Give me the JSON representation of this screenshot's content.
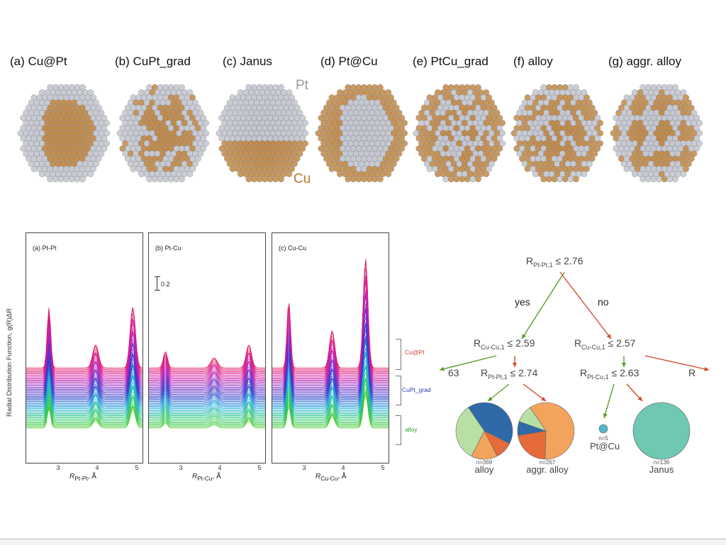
{
  "structures": [
    {
      "label": "(a) Cu@Pt",
      "kind": "core-shell-cu"
    },
    {
      "label": "(b) CuPt_grad",
      "kind": "grad-cu"
    },
    {
      "label": "(c) Janus",
      "kind": "janus"
    },
    {
      "label": "(d) Pt@Cu",
      "kind": "core-shell-pt"
    },
    {
      "label": "(e) PtCu_grad",
      "kind": "grad-pt"
    },
    {
      "label": "(f) alloy",
      "kind": "alloy"
    },
    {
      "label": "(g) aggr. alloy",
      "kind": "aggr"
    }
  ],
  "element_labels": {
    "pt": "Pt",
    "cu": "Cu"
  },
  "colors": {
    "pt": "#c4c6d0",
    "cu": "#c08a4a",
    "pt_label": "#9a9aa3",
    "cu_label": "#c0762e"
  },
  "rdf": {
    "y_axis_label": "Radial Distribution Function, g(R)ΔR",
    "scale_bar_label": "0.2",
    "x_ticks": [
      "3",
      "4",
      "5"
    ],
    "panels": [
      {
        "title": "(a) Pt-Pt",
        "xlabel": "R",
        "xlabel_sub": "Pt-Pt",
        "xlabel_unit": ", Å"
      },
      {
        "title": "(b) Pt-Cu",
        "xlabel": "R",
        "xlabel_sub": "Pt-Cu",
        "xlabel_unit": ", Å"
      },
      {
        "title": "(c) Cu-Cu",
        "xlabel": "R",
        "xlabel_sub": "Cu-Cu",
        "xlabel_unit": ", Å"
      }
    ],
    "groups": [
      {
        "label": "Cu@Pt",
        "color": "#d23a3a"
      },
      {
        "label": "CuPt_grad",
        "color": "#2a3aa8"
      },
      {
        "label": "alloy",
        "color": "#2a9a2a"
      }
    ]
  },
  "tree": {
    "root": {
      "var": "R",
      "sub": "Pt-Pt,1",
      "op": "≤ 2.76"
    },
    "yes_label": "yes",
    "no_label": "no",
    "left": {
      "var": "R",
      "sub": "Cu-Cu,1",
      "op": "≤ 2.59"
    },
    "right": {
      "var": "R",
      "sub": "Cu-Cu,1",
      "op": "≤ 2.57"
    },
    "left_left_cut": "63",
    "right_right_cut": "R",
    "left_right": {
      "var": "R",
      "sub": "Pt-Pt,1",
      "op": "≤ 2.74"
    },
    "right_left": {
      "var": "R",
      "sub": "Pt-Cu,1",
      "op": "≤ 2.63"
    },
    "leaves": [
      {
        "name": "alloy",
        "n": "n=369",
        "slices": [
          0.42,
          0.1,
          0.15,
          0.33
        ],
        "slice_colors": [
          "#2e6aa8",
          "#e56b3a",
          "#f2a35c",
          "#b8e0a4"
        ]
      },
      {
        "name": "aggr. alloy",
        "n": "n=267",
        "slices": [
          0.6,
          0.22,
          0.08,
          0.1
        ],
        "slice_colors": [
          "#f2a35c",
          "#e56b3a",
          "#2e6aa8",
          "#b8e0a4"
        ]
      },
      {
        "name": "Pt@Cu",
        "n": "n=5",
        "slices": [
          1.0
        ],
        "slice_colors": [
          "#52b5c8"
        ]
      },
      {
        "name": "Janus",
        "n": "n=136",
        "slices": [
          1.0
        ],
        "slice_colors": [
          "#6ec8b2"
        ]
      }
    ],
    "green": "#5a9e2e",
    "red": "#d24a2e"
  }
}
